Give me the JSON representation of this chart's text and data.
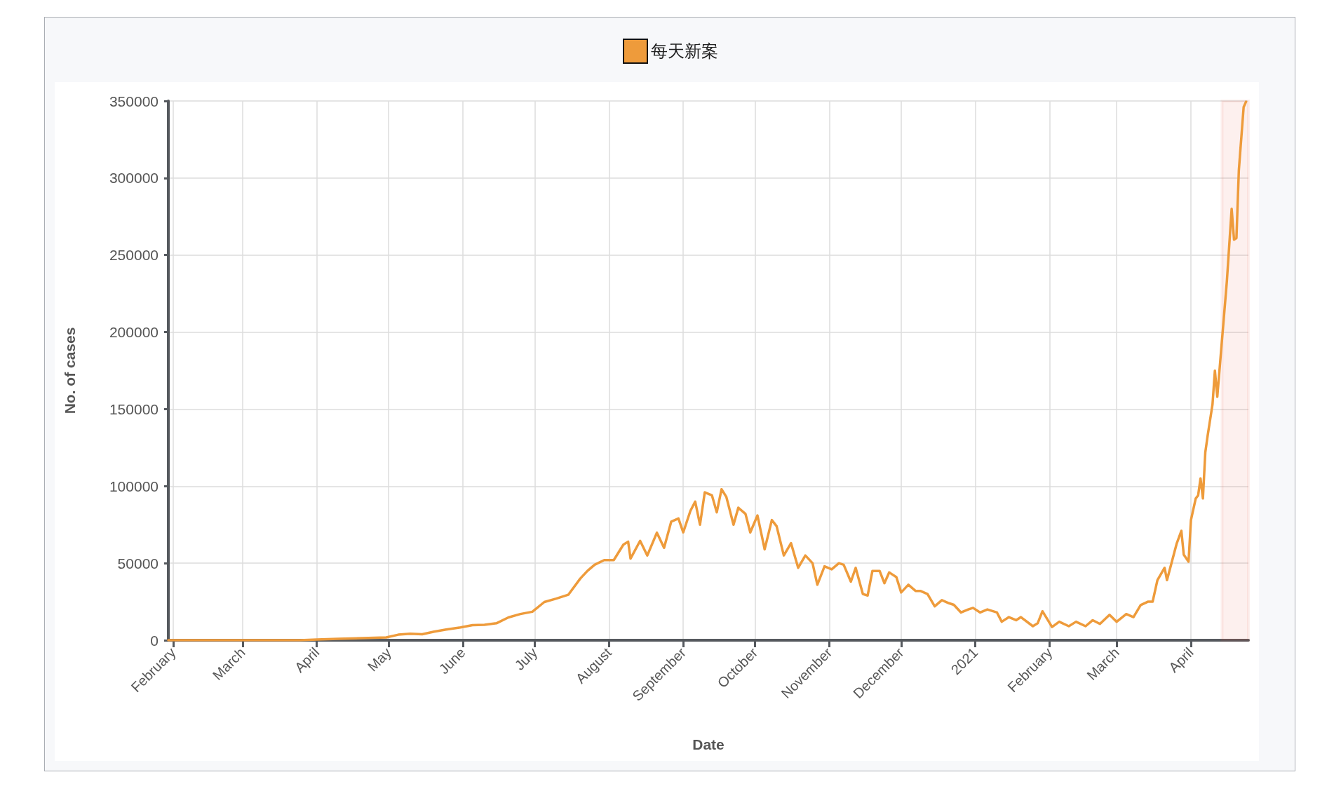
{
  "chart_data": {
    "type": "line",
    "xlabel": "Date",
    "ylabel": "No. of cases",
    "x": [
      "2020-01-30",
      "2020-02-15",
      "2020-03-01",
      "2020-03-15",
      "2020-03-25",
      "2020-04-01",
      "2020-04-10",
      "2020-04-20",
      "2020-04-30",
      "2020-05-05",
      "2020-05-10",
      "2020-05-15",
      "2020-05-20",
      "2020-05-25",
      "2020-05-31",
      "2020-06-05",
      "2020-06-10",
      "2020-06-15",
      "2020-06-20",
      "2020-06-25",
      "2020-06-30",
      "2020-07-05",
      "2020-07-10",
      "2020-07-15",
      "2020-07-20",
      "2020-07-23",
      "2020-07-26",
      "2020-07-30",
      "2020-08-03",
      "2020-08-07",
      "2020-08-09",
      "2020-08-10",
      "2020-08-14",
      "2020-08-17",
      "2020-08-21",
      "2020-08-24",
      "2020-08-27",
      "2020-08-30",
      "2020-09-01",
      "2020-09-04",
      "2020-09-06",
      "2020-09-08",
      "2020-09-10",
      "2020-09-13",
      "2020-09-15",
      "2020-09-17",
      "2020-09-19",
      "2020-09-22",
      "2020-09-24",
      "2020-09-27",
      "2020-09-29",
      "2020-10-02",
      "2020-10-05",
      "2020-10-08",
      "2020-10-10",
      "2020-10-13",
      "2020-10-16",
      "2020-10-19",
      "2020-10-22",
      "2020-10-25",
      "2020-10-27",
      "2020-10-30",
      "2020-11-02",
      "2020-11-05",
      "2020-11-07",
      "2020-11-10",
      "2020-11-12",
      "2020-11-15",
      "2020-11-17",
      "2020-11-19",
      "2020-11-22",
      "2020-11-24",
      "2020-11-26",
      "2020-11-29",
      "2020-12-01",
      "2020-12-04",
      "2020-12-07",
      "2020-12-09",
      "2020-12-12",
      "2020-12-15",
      "2020-12-18",
      "2020-12-21",
      "2020-12-23",
      "2020-12-26",
      "2020-12-29",
      "2020-12-31",
      "2021-01-03",
      "2021-01-06",
      "2021-01-10",
      "2021-01-12",
      "2021-01-15",
      "2021-01-18",
      "2021-01-20",
      "2021-01-25",
      "2021-01-27",
      "2021-01-29",
      "2021-02-02",
      "2021-02-05",
      "2021-02-09",
      "2021-02-12",
      "2021-02-16",
      "2021-02-19",
      "2021-02-22",
      "2021-02-26",
      "2021-03-01",
      "2021-03-05",
      "2021-03-08",
      "2021-03-11",
      "2021-03-14",
      "2021-03-16",
      "2021-03-18",
      "2021-03-21",
      "2021-03-22",
      "2021-03-26",
      "2021-03-28",
      "2021-03-29",
      "2021-03-31",
      "2021-04-01",
      "2021-04-03",
      "2021-04-04",
      "2021-04-05",
      "2021-04-06",
      "2021-04-07",
      "2021-04-08",
      "2021-04-10",
      "2021-04-11",
      "2021-04-12",
      "2021-04-16",
      "2021-04-18",
      "2021-04-19",
      "2021-04-20",
      "2021-04-21",
      "2021-04-23",
      "2021-04-24"
    ],
    "series": [
      {
        "name": "每天新案",
        "color": "#ee9b3b",
        "values": [
          0,
          0,
          0,
          0,
          0,
          400,
          900,
          1400,
          1800,
          3600,
          4200,
          3900,
          5600,
          6900,
          8300,
          9800,
          10000,
          11000,
          14800,
          17000,
          18500,
          24800,
          27000,
          29500,
          40000,
          45000,
          49000,
          52000,
          52000,
          62000,
          64000,
          53000,
          64500,
          55000,
          69800,
          60000,
          77000,
          79000,
          70000,
          84000,
          90000,
          75000,
          96000,
          94000,
          83000,
          98000,
          93000,
          75000,
          86000,
          82000,
          70000,
          81000,
          59000,
          78000,
          74000,
          55000,
          63000,
          47000,
          55000,
          50000,
          36000,
          48000,
          46000,
          50000,
          49000,
          38000,
          47000,
          30000,
          29000,
          45000,
          45000,
          37000,
          44000,
          41000,
          31000,
          36000,
          32000,
          32000,
          30000,
          22000,
          26000,
          24000,
          23000,
          18000,
          20000,
          21000,
          18000,
          20000,
          18000,
          12000,
          15000,
          13000,
          15000,
          9100,
          11000,
          18800,
          8600,
          12000,
          9100,
          12000,
          9100,
          13000,
          10600,
          16500,
          12000,
          17000,
          15000,
          22800,
          25000,
          25000,
          39000,
          47000,
          39000,
          62500,
          71000,
          55500,
          51000,
          78000,
          92000,
          94000,
          105000,
          92000,
          122000,
          133000,
          153000,
          175000,
          158000,
          233000,
          280000,
          260000,
          261000,
          305000,
          346000,
          349500
        ]
      }
    ],
    "xlim": [
      "2020-01-30",
      "2021-04-25"
    ],
    "xticks": [
      {
        "value": "2020-02-01",
        "label": "February"
      },
      {
        "value": "2020-03-01",
        "label": "March"
      },
      {
        "value": "2020-04-01",
        "label": "April"
      },
      {
        "value": "2020-05-01",
        "label": "May"
      },
      {
        "value": "2020-06-01",
        "label": "June"
      },
      {
        "value": "2020-07-01",
        "label": "July"
      },
      {
        "value": "2020-08-01",
        "label": "August"
      },
      {
        "value": "2020-09-01",
        "label": "September"
      },
      {
        "value": "2020-10-01",
        "label": "October"
      },
      {
        "value": "2020-11-01",
        "label": "November"
      },
      {
        "value": "2020-12-01",
        "label": "December"
      },
      {
        "value": "2021-01-01",
        "label": "2021"
      },
      {
        "value": "2021-02-01",
        "label": "February"
      },
      {
        "value": "2021-03-01",
        "label": "March"
      },
      {
        "value": "2021-04-01",
        "label": "April"
      }
    ],
    "ylim": [
      0,
      350000
    ],
    "yticks": [
      0,
      50000,
      100000,
      150000,
      200000,
      250000,
      300000,
      350000
    ],
    "grid": true,
    "legend": "top",
    "marker": "none",
    "line_style": "solid",
    "bands": [
      {
        "axis": "x",
        "from": "2021-04-14",
        "to": "2021-04-25",
        "color": "#e53b2c"
      }
    ]
  }
}
